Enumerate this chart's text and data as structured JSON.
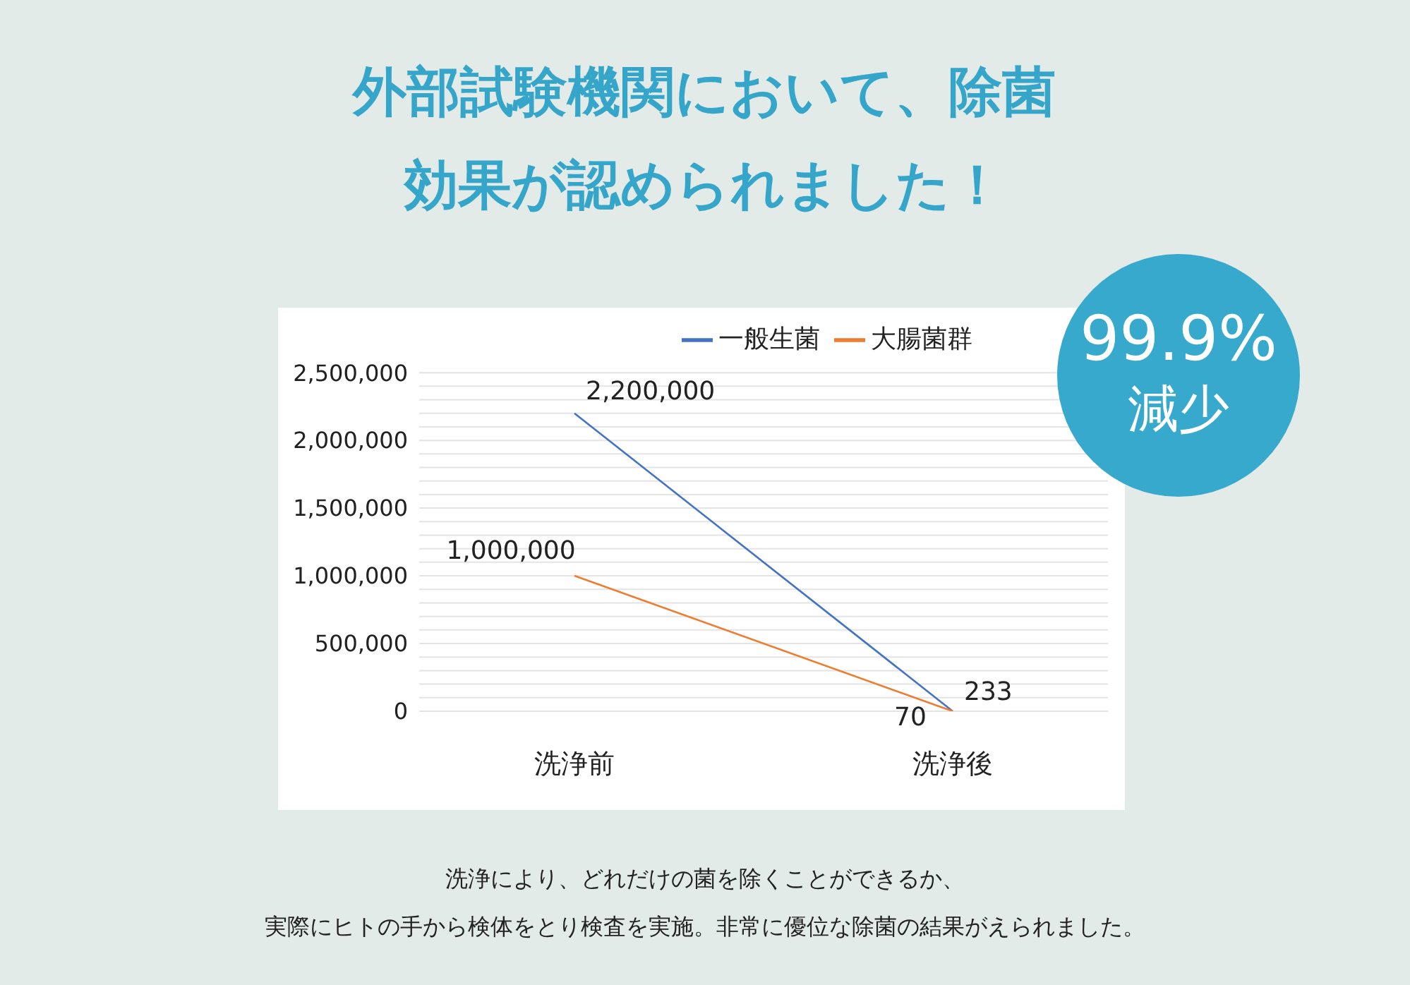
{
  "chart_data": {
    "type": "line",
    "title": "外部試験機関において、除菌効果が認められました！",
    "categories": [
      "洗浄前",
      "洗浄後"
    ],
    "series": [
      {
        "name": "一般生菌",
        "color": "#4472c4",
        "values": [
          2200000,
          233
        ],
        "value_labels": [
          "2,200,000",
          "233"
        ]
      },
      {
        "name": "大腸菌群",
        "color": "#ed7d31",
        "values": [
          1000000,
          70
        ],
        "value_labels": [
          "1,000,000",
          "70"
        ]
      }
    ],
    "ylim": [
      0,
      2500000
    ],
    "yticks": [
      0,
      {
        "value": 100000,
        "label": null
      },
      {
        "value": 200000,
        "label": null
      },
      {
        "value": 300000,
        "label": null
      },
      {
        "value": 400000,
        "label": null
      },
      {
        "value": 500000,
        "label": "500,000"
      },
      {
        "value": 600000,
        "label": null
      },
      {
        "value": 700000,
        "label": null
      },
      {
        "value": 800000,
        "label": null
      },
      {
        "value": 900000,
        "label": null
      },
      {
        "value": 1000000,
        "label": "1,000,000"
      },
      {
        "value": 1100000,
        "label": null
      },
      {
        "value": 1200000,
        "label": null
      },
      {
        "value": 1300000,
        "label": null
      },
      {
        "value": 1400000,
        "label": null
      },
      {
        "value": 1500000,
        "label": "1,500,000"
      },
      {
        "value": 1600000,
        "label": null
      },
      {
        "value": 1700000,
        "label": null
      },
      {
        "value": 1800000,
        "label": null
      },
      {
        "value": 1900000,
        "label": null
      },
      {
        "value": 2000000,
        "label": "2,000,000"
      },
      {
        "value": 2100000,
        "label": null
      },
      {
        "value": 2200000,
        "label": null
      },
      {
        "value": 2300000,
        "label": null
      },
      {
        "value": 2400000,
        "label": null
      },
      {
        "value": 2500000,
        "label": "2,500,000"
      }
    ],
    "grid": "y",
    "legend": "top",
    "marker": "none",
    "line_style": "solid",
    "annotations": [
      "99.9%",
      "減少",
      "洗浄により、どれだけの菌を除くことができるか、",
      "実際にヒトの手から検体をとり検査を実施。非常に優位な除菌の結果がえられました。"
    ]
  }
}
